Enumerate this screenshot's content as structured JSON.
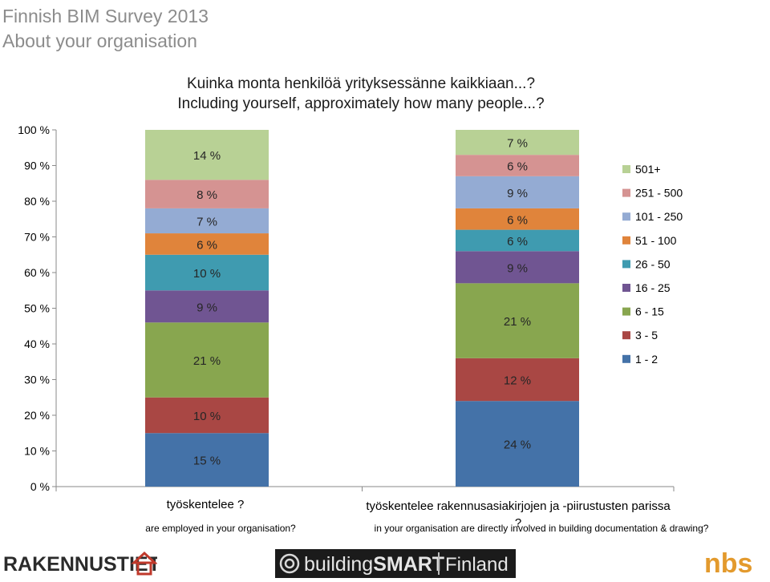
{
  "header": {
    "line1": "Finnish BIM Survey 2013",
    "line2": "About your organisation"
  },
  "colors": {
    "1 - 2": "#4472a8",
    "3 - 5": "#a94744",
    "6 - 15": "#88a64f",
    "16 - 25": "#705592",
    "26 - 50": "#3f9bb0",
    "51 - 100": "#e0843b",
    "101 - 250": "#94abd3",
    "251 - 500": "#d59392",
    "501+": "#b8d195",
    "header": "#8c8c8c"
  },
  "chart_data": {
    "type": "bar",
    "stacked": true,
    "title": "Kuinka monta henkilöä yrityksessänne kaikkiaan...?",
    "subtitle": "Including yourself, approximately how many people...?",
    "categories": [
      "työskentelee ?",
      "työskentelee rakennusasiakirjojen ja -piirustusten parissa ?"
    ],
    "category_sublabels": [
      "are employed in your organisation?",
      "in your organisation are directly involved in building documentation & drawing?"
    ],
    "yticks": [
      "0 %",
      "10 %",
      "20 %",
      "30 %",
      "40 %",
      "50 %",
      "60 %",
      "70 %",
      "80 %",
      "90 %",
      "100 %"
    ],
    "ylim": [
      0,
      100
    ],
    "legend_position": "right",
    "series": [
      {
        "name": "1 - 2",
        "values": [
          15,
          24
        ]
      },
      {
        "name": "3 - 5",
        "values": [
          10,
          12
        ]
      },
      {
        "name": "6 - 15",
        "values": [
          21,
          21
        ]
      },
      {
        "name": "16 - 25",
        "values": [
          9,
          9
        ]
      },
      {
        "name": "26 - 50",
        "values": [
          10,
          6
        ]
      },
      {
        "name": "51 - 100",
        "values": [
          6,
          6
        ]
      },
      {
        "name": "101 - 250",
        "values": [
          7,
          9
        ]
      },
      {
        "name": "251 - 500",
        "values": [
          8,
          6
        ]
      },
      {
        "name": "501+",
        "values": [
          14,
          7
        ]
      }
    ],
    "data_labels": [
      [
        "15 %",
        "10 %",
        "21 %",
        "9 %",
        "10 %",
        "6 %",
        "7 %",
        "8 %",
        "14 %"
      ],
      [
        "24 %",
        "12 %",
        "21 %",
        "9 %",
        "6 %",
        "6 %",
        "9 %",
        "6 %",
        "7 %"
      ]
    ]
  },
  "logos": {
    "left": "RAKENNUSTIETO",
    "center_a": "building",
    "center_b": "SMART",
    "center_c": "Finland",
    "right": "nbs"
  }
}
